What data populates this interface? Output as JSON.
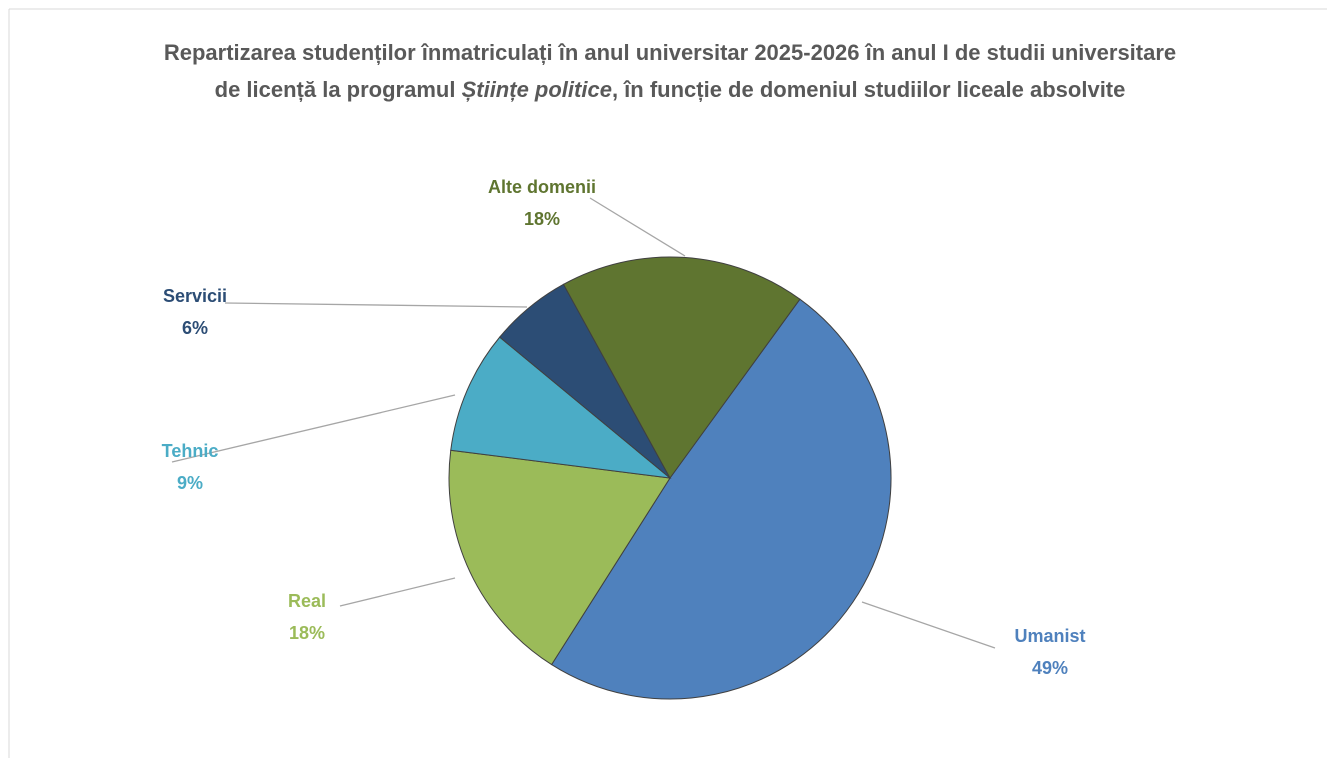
{
  "chart_data": {
    "type": "pie",
    "title": [
      "Repartizarea studenților înmatriculați în anul universitar 2025-2026 în anul I de studii universitare de licență la programul ",
      "Științe politice",
      ", în funcție de domeniul studiilor liceale absolvite"
    ],
    "title_italic": [
      false,
      true,
      false
    ],
    "categories": [
      "Umanist",
      "Real",
      "Tehnic",
      "Servicii",
      "Alte domenii"
    ],
    "values": [
      49,
      18,
      9,
      6,
      18
    ],
    "value_labels": [
      "49%",
      "18%",
      "9%",
      "6%",
      "18%"
    ],
    "colors": [
      "#4f81bd",
      "#9bbb59",
      "#4bacc6",
      "#2c4d75",
      "#5f7530"
    ],
    "start_angle": 36
  }
}
